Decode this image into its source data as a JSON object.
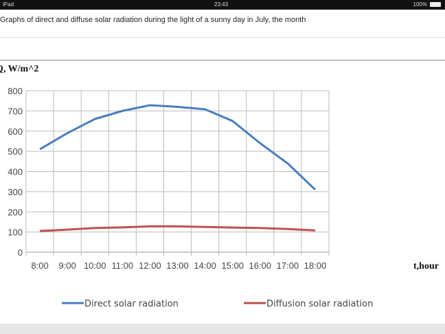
{
  "status_bar": {
    "device": "iPad",
    "time": "23:43",
    "battery": "100%"
  },
  "page": {
    "caption": "Graphs of direct and diffuse solar radiation during the light of a sunny day in July, the month"
  },
  "chart_data": {
    "type": "line",
    "title": "",
    "ylabel": "Q, W/m^2",
    "xlabel": "t,hour",
    "ylim": [
      0,
      800
    ],
    "yticks": [
      0,
      100,
      200,
      300,
      400,
      500,
      600,
      700,
      800
    ],
    "categories": [
      "8:00",
      "9:00",
      "10:00",
      "11:00",
      "12:00",
      "13:00",
      "14:00",
      "15:00",
      "16:00",
      "17:00",
      "18:00"
    ],
    "grid": true,
    "legend": "bottom",
    "series": [
      {
        "name": "Direct solar radiation",
        "color": "#4a7ebf",
        "values": [
          510,
          590,
          660,
          700,
          728,
          720,
          708,
          650,
          540,
          440,
          310
        ]
      },
      {
        "name": "Diffusion solar radiation",
        "color": "#c0504d",
        "values": [
          105,
          112,
          120,
          123,
          128,
          128,
          125,
          122,
          120,
          115,
          108
        ]
      }
    ]
  }
}
